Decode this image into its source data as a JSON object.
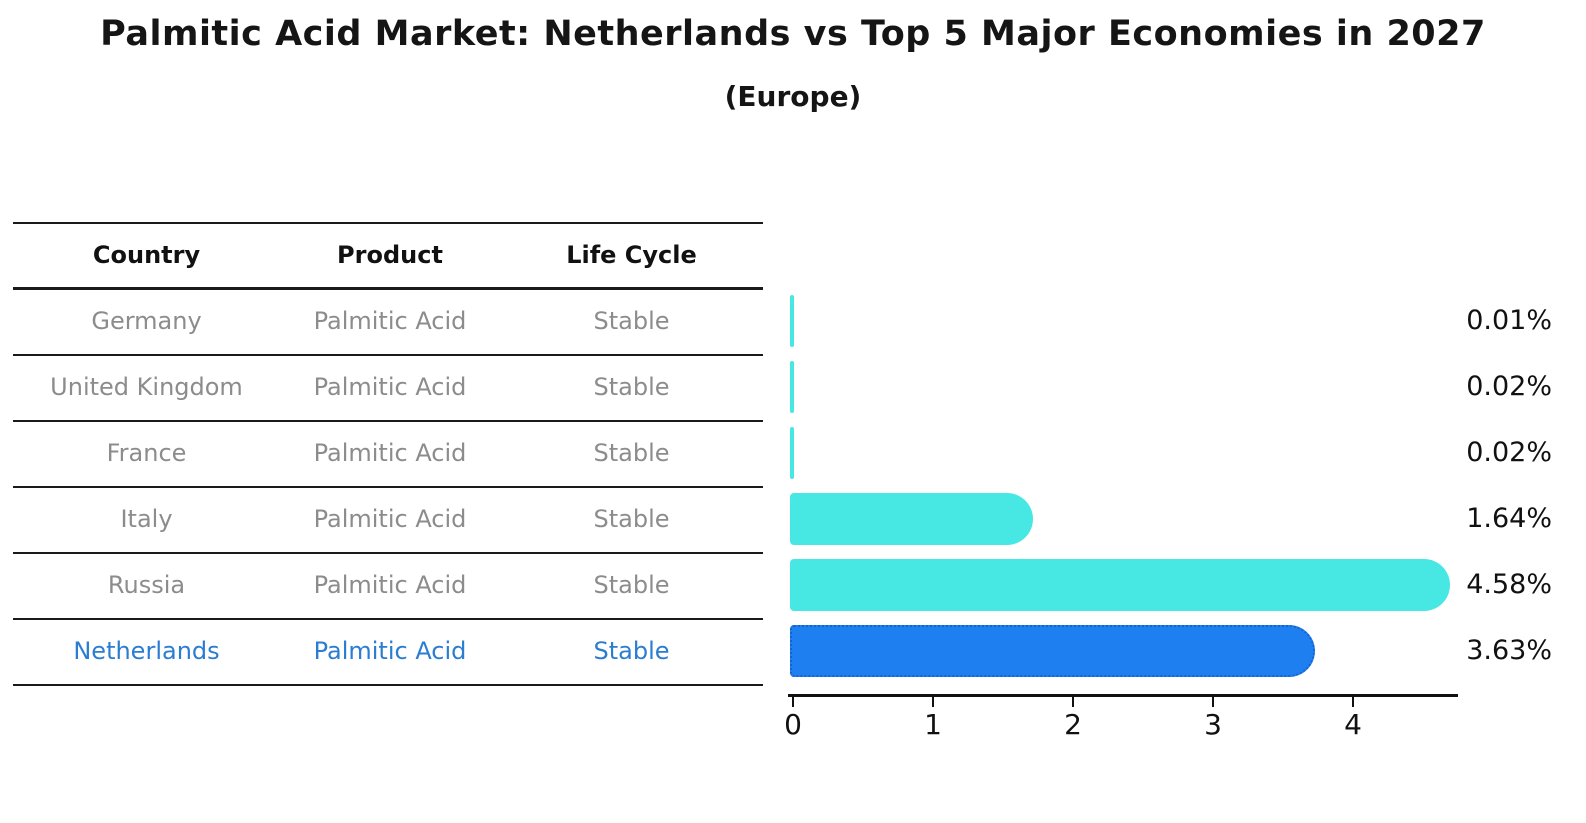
{
  "title": "Palmitic Acid Market: Netherlands vs Top 5 Major Economies in 2027",
  "subtitle": "(Europe)",
  "table": {
    "headers": [
      "Country",
      "Product",
      "Life Cycle"
    ],
    "rows": [
      {
        "country": "Germany",
        "product": "Palmitic Acid",
        "life_cycle": "Stable"
      },
      {
        "country": "United Kingdom",
        "product": "Palmitic Acid",
        "life_cycle": "Stable"
      },
      {
        "country": "France",
        "product": "Palmitic Acid",
        "life_cycle": "Stable"
      },
      {
        "country": "Italy",
        "product": "Palmitic Acid",
        "life_cycle": "Stable"
      },
      {
        "country": "Russia",
        "product": "Palmitic Acid",
        "life_cycle": "Stable"
      },
      {
        "country": "Netherlands",
        "product": "Palmitic Acid",
        "life_cycle": "Stable"
      }
    ]
  },
  "chart_data": {
    "type": "bar",
    "orientation": "horizontal",
    "title": "Palmitic Acid Market: Netherlands vs Top 5 Major Economies in 2027 (Europe)",
    "categories": [
      "Germany",
      "United Kingdom",
      "France",
      "Italy",
      "Russia",
      "Netherlands"
    ],
    "values": [
      0.01,
      0.02,
      0.02,
      1.64,
      4.58,
      3.63
    ],
    "value_labels": [
      "0.01%",
      "0.02%",
      "0.02%",
      "1.64%",
      "4.58%",
      "3.63%"
    ],
    "unit": "%",
    "xticks": [
      "0",
      "1",
      "2",
      "3",
      "4"
    ],
    "xtick_values": [
      0,
      1,
      2,
      3,
      4
    ],
    "xlim": [
      0,
      4.8
    ],
    "grid": false,
    "legend": "none",
    "bar_color": "#47e8e4",
    "highlight_index": 5,
    "highlight_bar_color": "#1e80f0",
    "highlight_bar_edge_color": "#1563d2",
    "highlight_text_color": "#2a7dd1"
  },
  "colors": {
    "background": "#ffffff",
    "heading_text": "#151515",
    "muted_text": "#8c8c8c",
    "axis": "#111111"
  }
}
